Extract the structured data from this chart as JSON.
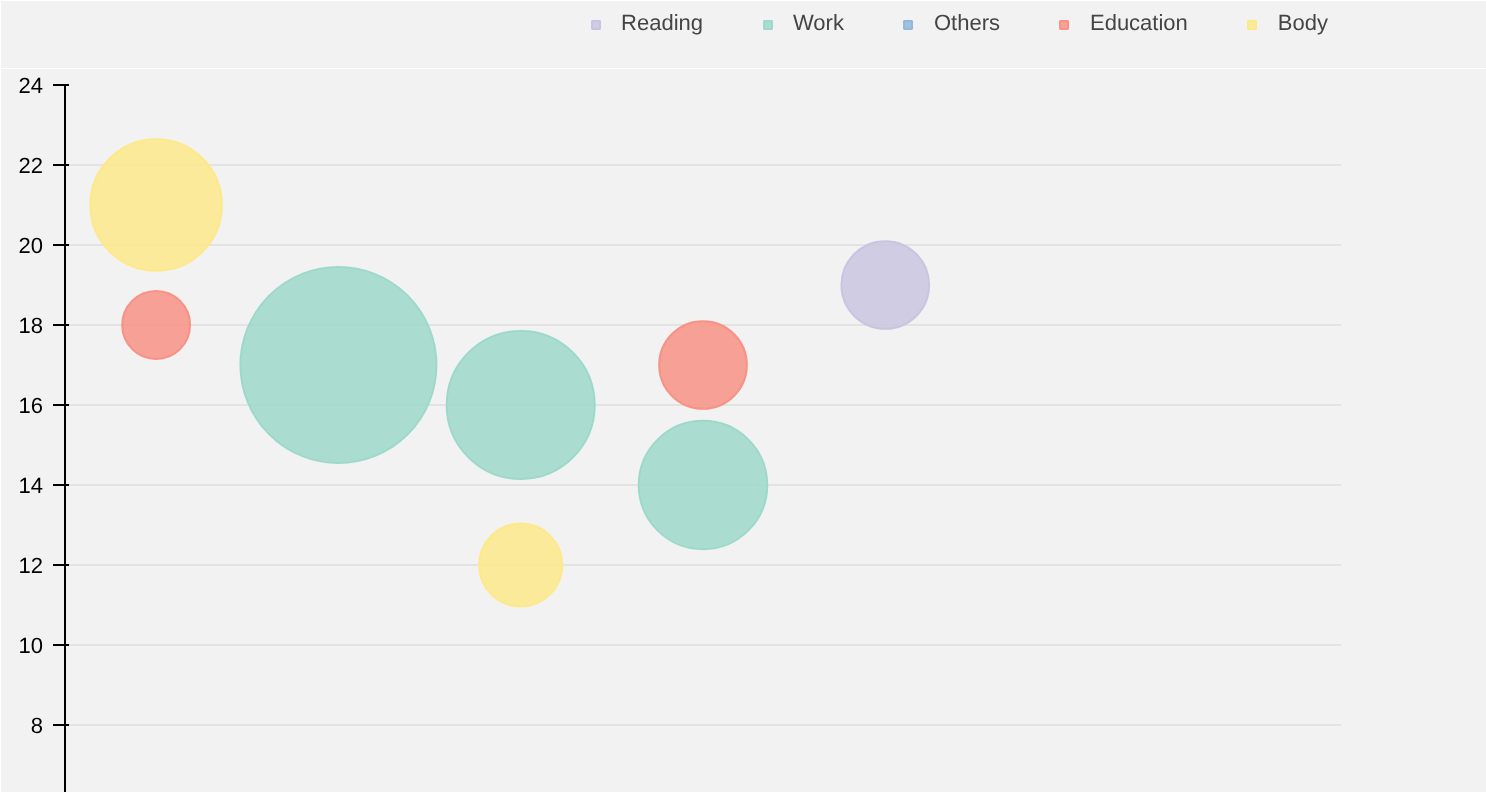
{
  "chart_data": {
    "type": "bubble",
    "categories": [
      null,
      null,
      null,
      null,
      null,
      null,
      null
    ],
    "ylim": [
      6.3,
      24
    ],
    "yticks": [
      8,
      10,
      12,
      14,
      16,
      18,
      20,
      22,
      24
    ],
    "grid": "y",
    "legend": "top right",
    "tick_labels": "y",
    "series": [
      {
        "name": "Reading",
        "color": "#c9c5e0",
        "values": [
          null,
          null,
          null,
          null,
          19,
          null,
          null
        ],
        "sizes": [
          null,
          null,
          null,
          null,
          0.2,
          null,
          null
        ]
      },
      {
        "name": "Work",
        "color": "#9dd9ca",
        "values": [
          null,
          17,
          16,
          14,
          null,
          null,
          null
        ],
        "sizes": [
          null,
          1,
          0.57,
          0.43,
          null,
          null,
          null
        ]
      },
      {
        "name": "Others",
        "color": "#92b9d9",
        "values": [
          null,
          null,
          null,
          null,
          null,
          null,
          null
        ],
        "sizes": [
          null,
          null,
          null,
          null,
          null,
          null,
          null
        ]
      },
      {
        "name": "Education",
        "color": "#f79286",
        "values": [
          18,
          null,
          null,
          17,
          null,
          null,
          null
        ],
        "sizes": [
          0.12,
          null,
          null,
          0.2,
          null,
          null,
          null
        ]
      },
      {
        "name": "Body",
        "color": "#fde98a",
        "values": [
          21,
          null,
          12,
          null,
          null,
          null,
          null
        ],
        "sizes": [
          0.45,
          null,
          0.18,
          null,
          null,
          null,
          null
        ]
      }
    ]
  }
}
